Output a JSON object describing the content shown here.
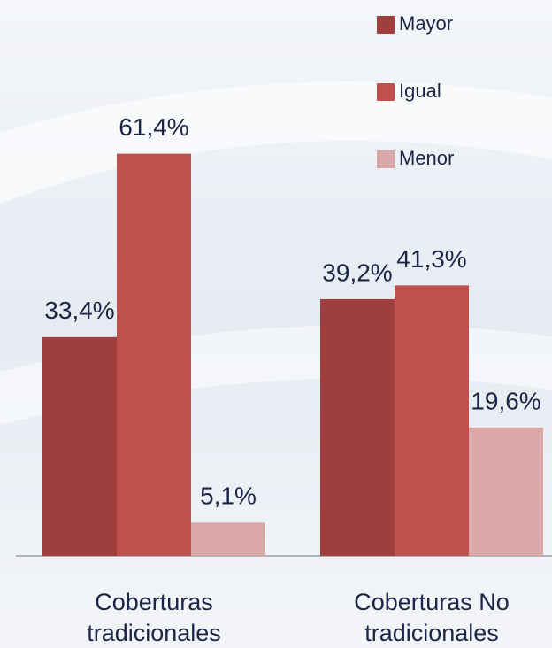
{
  "chart_data": {
    "type": "bar",
    "categories": [
      [
        "Coberturas",
        "tradicionales"
      ],
      [
        "Coberturas No",
        "tradicionales"
      ]
    ],
    "series": [
      {
        "name": "Mayor",
        "color": "#9e3f3e",
        "values": [
          33.4,
          39.2
        ],
        "value_labels": [
          "33,4%",
          "39,2%"
        ]
      },
      {
        "name": "Igual",
        "color": "#c0504d",
        "values": [
          61.4,
          41.3
        ],
        "value_labels": [
          "61,4%",
          "41,3%"
        ]
      },
      {
        "name": "Menor",
        "color": "#dba8a8",
        "values": [
          5.1,
          19.6
        ],
        "value_labels": [
          "5,1%",
          "19,6%"
        ]
      }
    ],
    "ylim": [
      0,
      80
    ],
    "legend": "top-right"
  }
}
